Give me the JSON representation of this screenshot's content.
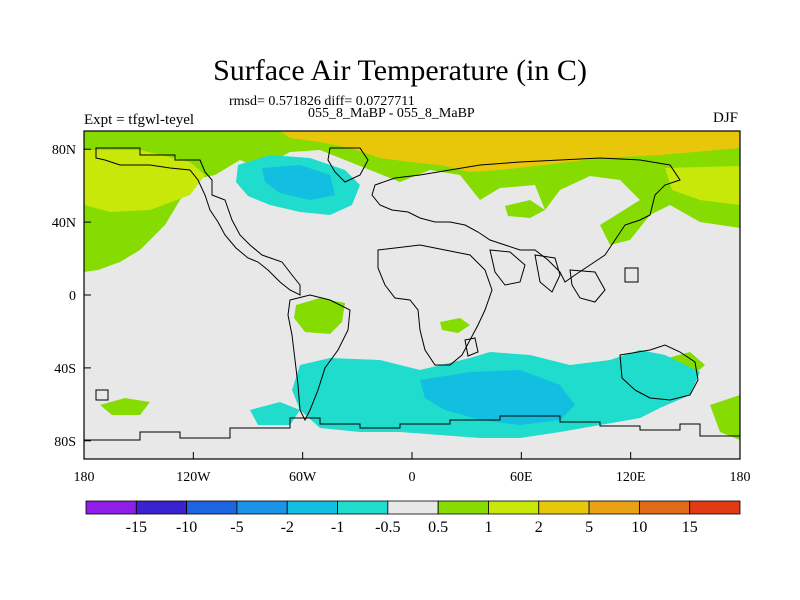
{
  "chart_data": {
    "type": "heatmap",
    "title": "Surface Air Temperature (in C)",
    "stats_line": "rmsd= 0.571826 diff= 0.0727711",
    "comparison": "055_8_MaBP - 055_8_MaBP",
    "experiment": "Expt = tfgwl-teyel",
    "season": "DJF",
    "x_ticks": [
      "180",
      "120W",
      "60W",
      "0",
      "60E",
      "120E",
      "180"
    ],
    "x_tick_values": [
      -180,
      -120,
      -60,
      0,
      60,
      120,
      180
    ],
    "y_ticks": [
      "80N",
      "40N",
      "0",
      "40S",
      "80S"
    ],
    "y_tick_values": [
      80,
      40,
      0,
      -40,
      -80
    ],
    "xlim": [
      -180,
      180
    ],
    "ylim": [
      -90,
      90
    ],
    "colorbar": {
      "labels": [
        "-15",
        "-10",
        "-5",
        "-2",
        "-1",
        "-0.5",
        "0.5",
        "1",
        "2",
        "5",
        "10",
        "15"
      ],
      "colors": [
        "#8f1fe8",
        "#3a22d0",
        "#1e64e0",
        "#1b93e6",
        "#12bfe0",
        "#1fdccc",
        "#e8e8e8",
        "#86dc00",
        "#c8e80a",
        "#e8c70a",
        "#e8a214",
        "#e06a18",
        "#e23a14"
      ]
    },
    "regions": [
      {
        "level": "-1 to -0.5",
        "color": "#1fdccc",
        "area": "Southern Ocean band 40S-80S"
      },
      {
        "level": "-2 to -1",
        "color": "#12bfe0",
        "area": "south of Africa, Indian Ocean sector"
      },
      {
        "level": "-1 to -0.5",
        "color": "#1fdccc",
        "area": "North Atlantic / Greenland sector"
      },
      {
        "level": "0.5 to 1",
        "color": "#86dc00",
        "area": "Arctic and northern mid-latitudes"
      },
      {
        "level": "1 to 2",
        "color": "#c8e80a",
        "area": "North Pacific 40N-80N"
      },
      {
        "level": "2 to 5",
        "color": "#e8c70a",
        "area": "Arctic Ocean near 80N-90N"
      }
    ]
  }
}
